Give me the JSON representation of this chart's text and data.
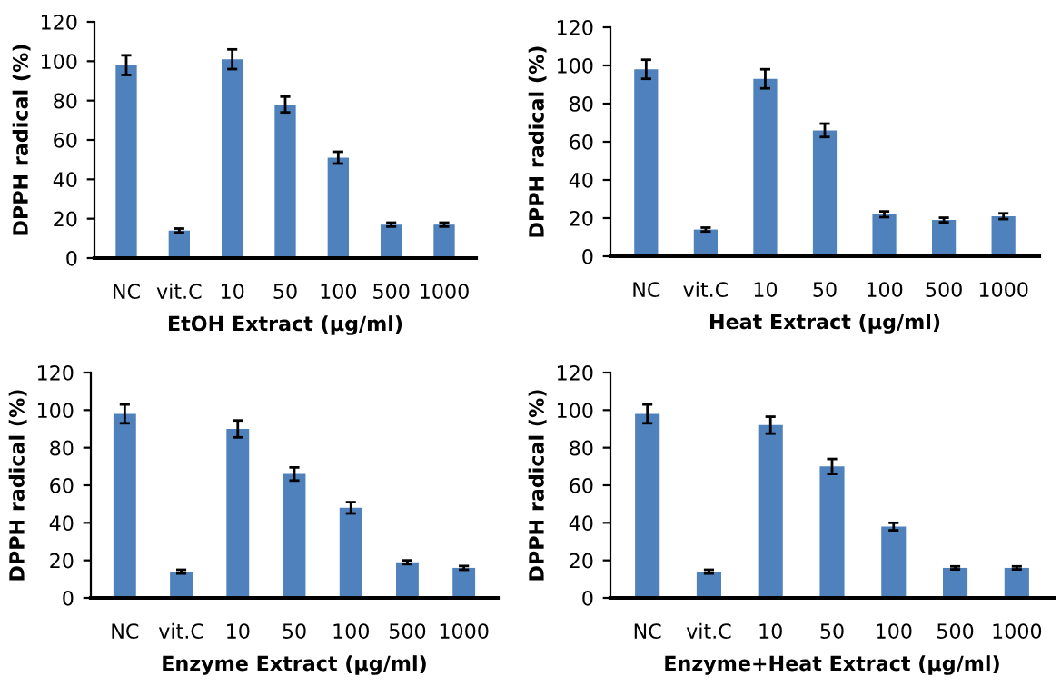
{
  "chart_data": [
    {
      "type": "bar",
      "xlabel": "EtOH Extract (μg/ml)",
      "ylabel": "DPPH radical (%)",
      "categories": [
        "NC",
        "vit.C",
        "10",
        "50",
        "100",
        "500",
        "1000"
      ],
      "values": [
        98,
        14,
        101,
        78,
        51,
        17,
        17
      ],
      "errors": [
        5,
        1,
        5,
        4,
        3,
        1,
        1
      ],
      "color": "#4f81bd",
      "ylim": [
        0,
        120
      ],
      "yticks": [
        0,
        20,
        40,
        60,
        80,
        100,
        120
      ],
      "grid": false,
      "legend": false
    },
    {
      "type": "bar",
      "xlabel": "Heat Extract (μg/ml)",
      "ylabel": "DPPH radical (%)",
      "categories": [
        "NC",
        "vit.C",
        "10",
        "50",
        "100",
        "500",
        "1000"
      ],
      "values": [
        98,
        14,
        93,
        66,
        22,
        19,
        21
      ],
      "errors": [
        5,
        1,
        5,
        3.5,
        1.5,
        1.2,
        1.5
      ],
      "color": "#4f81bd",
      "ylim": [
        0,
        120
      ],
      "yticks": [
        0,
        20,
        40,
        60,
        80,
        100,
        120
      ],
      "grid": false,
      "legend": false
    },
    {
      "type": "bar",
      "xlabel": "Enzyme Extract (μg/ml)",
      "ylabel": "DPPH radical (%)",
      "categories": [
        "NC",
        "vit.C",
        "10",
        "50",
        "100",
        "500",
        "1000"
      ],
      "values": [
        98,
        14,
        90,
        66,
        48,
        19,
        16
      ],
      "errors": [
        5,
        1,
        4.5,
        3.5,
        3,
        1,
        1
      ],
      "color": "#4f81bd",
      "ylim": [
        0,
        120
      ],
      "yticks": [
        0,
        20,
        40,
        60,
        80,
        100,
        120
      ],
      "grid": false,
      "legend": false
    },
    {
      "type": "bar",
      "xlabel": "Enzyme+Heat Extract (μg/ml)",
      "ylabel": "DPPH radical (%)",
      "categories": [
        "NC",
        "vit.C",
        "10",
        "50",
        "100",
        "500",
        "1000"
      ],
      "values": [
        98,
        14,
        92,
        70,
        38,
        16,
        16
      ],
      "errors": [
        5,
        1,
        4.5,
        4,
        2,
        0.8,
        0.8
      ],
      "color": "#4f81bd",
      "ylim": [
        0,
        120
      ],
      "yticks": [
        0,
        20,
        40,
        60,
        80,
        100,
        120
      ],
      "grid": false,
      "legend": false
    }
  ]
}
